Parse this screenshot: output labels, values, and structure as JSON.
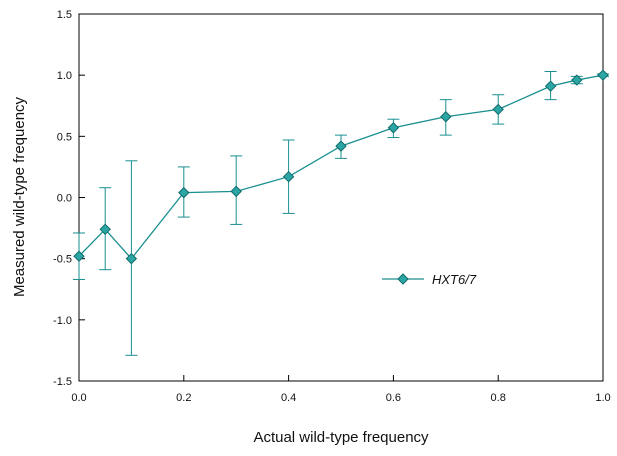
{
  "chart_data": {
    "type": "line",
    "title": "",
    "xlabel": "Actual wild-type frequency",
    "ylabel": "Measured wild-type frequency",
    "xlim": [
      0.0,
      1.0
    ],
    "ylim": [
      -1.5,
      1.5
    ],
    "xticks": [
      "0.0",
      "0.2",
      "0.4",
      "0.6",
      "0.8",
      "1.0"
    ],
    "yticks": [
      "1.5",
      "1.0",
      "0.5",
      "0.0",
      "-0.5",
      "-1.0",
      "-1.5"
    ],
    "grid": false,
    "legend_position": "center-right",
    "series": [
      {
        "name": "HXT6/7",
        "color": "#1a8f8f",
        "marker_fill": "#2ca6a4",
        "marker": "diamond",
        "x": [
          0.0,
          0.05,
          0.1,
          0.2,
          0.3,
          0.4,
          0.5,
          0.6,
          0.7,
          0.8,
          0.9,
          0.95,
          1.0
        ],
        "y": [
          -0.48,
          -0.26,
          -0.5,
          0.04,
          0.05,
          0.17,
          0.42,
          0.57,
          0.66,
          0.72,
          0.91,
          0.96,
          1.0
        ],
        "y_lower": [
          -0.67,
          -0.59,
          -1.29,
          -0.16,
          -0.22,
          -0.13,
          0.32,
          0.49,
          0.51,
          0.6,
          0.8,
          0.93,
          0.99
        ],
        "y_upper": [
          -0.29,
          0.08,
          0.3,
          0.25,
          0.34,
          0.47,
          0.51,
          0.64,
          0.8,
          0.84,
          1.03,
          0.99,
          1.01
        ]
      }
    ]
  }
}
